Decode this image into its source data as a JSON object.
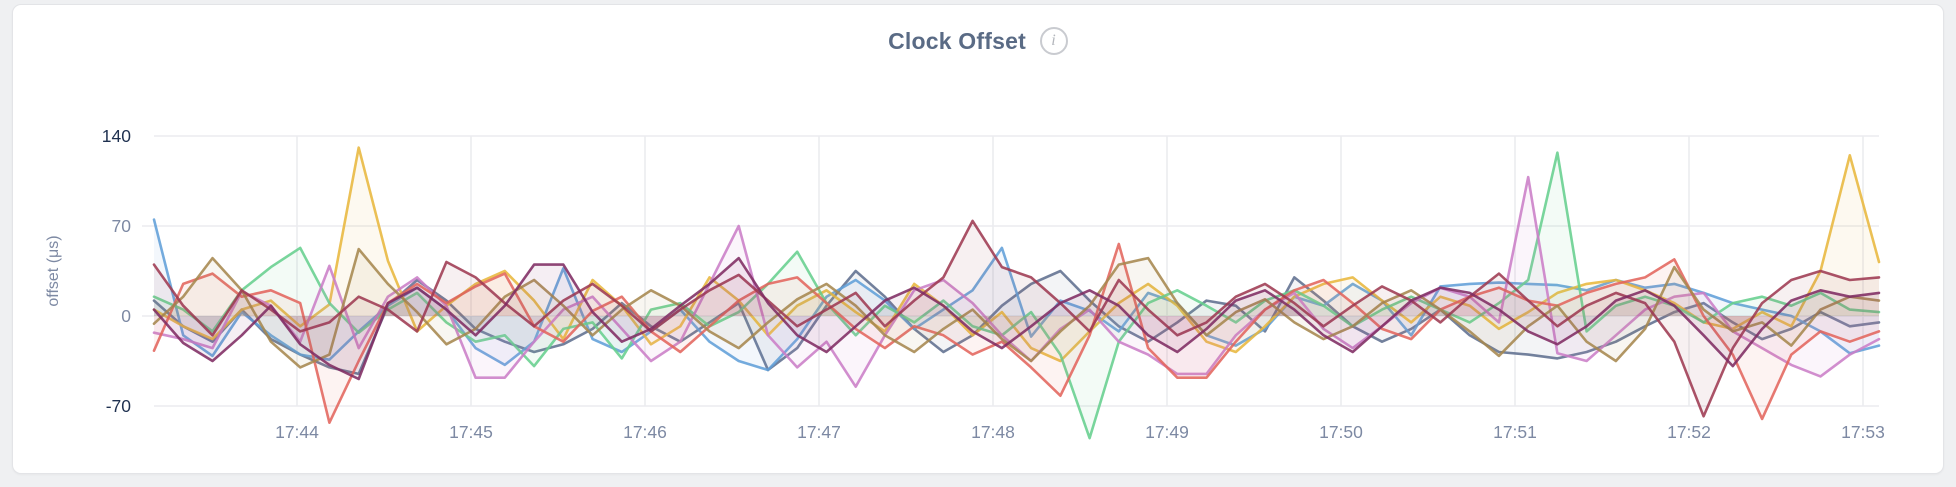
{
  "card": {
    "title": "Clock Offset",
    "info_icon_glyph": "i"
  },
  "colors": {
    "page_background": "#eff0f2",
    "card_background": "#ffffff",
    "card_border": "#e3e4e7",
    "title_text": "#5a6b85",
    "gridline": "#ebecef",
    "axis_label_muted": "#7d89a3",
    "axis_label_strong": "#1f3150"
  },
  "chart_data": {
    "type": "line",
    "title": "Clock Offset",
    "xlabel": "",
    "ylabel": "offset (μs)",
    "unit": "μs",
    "x_ticks": [
      "17:44",
      "17:45",
      "17:46",
      "17:47",
      "17:48",
      "17:49",
      "17:50",
      "17:51",
      "17:52",
      "17:53"
    ],
    "y_ticks": [
      140,
      70,
      0,
      -70
    ],
    "ylim": [
      -70,
      140
    ],
    "grid": true,
    "legend": "none",
    "series": [
      {
        "name": "slate",
        "color": "#60708f",
        "values": [
          12,
          -8,
          -20,
          5,
          -18,
          -30,
          -40,
          -45,
          8,
          28,
          12,
          -10,
          -20,
          -28,
          -22,
          -10,
          10,
          -8,
          -20,
          -5,
          10,
          -42,
          -25,
          8,
          35,
          15,
          -10,
          -28,
          -15,
          8,
          25,
          35,
          12,
          -8,
          -20,
          -5,
          12,
          8,
          -12,
          30,
          12,
          -8,
          -20,
          -10,
          5,
          -15,
          -28,
          -30,
          -33,
          -28,
          -20,
          -8,
          3,
          10,
          -5,
          -18,
          -10,
          3,
          -8,
          -5
        ]
      },
      {
        "name": "blue",
        "color": "#619fd8",
        "values": [
          75,
          -15,
          -31,
          3,
          -15,
          -30,
          -34,
          -12,
          8,
          22,
          5,
          -25,
          -38,
          -20,
          37,
          -18,
          -28,
          -12,
          5,
          -20,
          -35,
          -42,
          -18,
          15,
          28,
          12,
          -10,
          5,
          20,
          53,
          -16,
          12,
          4,
          -12,
          18,
          10,
          -15,
          -23,
          -10,
          15,
          8,
          25,
          12,
          -15,
          23,
          25,
          26,
          25,
          24,
          20,
          28,
          22,
          25,
          18,
          10,
          5,
          0,
          -12,
          -29,
          -23
        ]
      },
      {
        "name": "gold",
        "color": "#e8b73d",
        "values": [
          5,
          -8,
          -18,
          5,
          12,
          -8,
          9,
          131,
          43,
          -12,
          8,
          25,
          35,
          12,
          -18,
          28,
          8,
          -22,
          -8,
          30,
          12,
          -15,
          8,
          20,
          3,
          -12,
          25,
          8,
          -15,
          3,
          -25,
          -35,
          -12,
          10,
          25,
          8,
          -20,
          -28,
          -8,
          15,
          25,
          30,
          12,
          -5,
          15,
          8,
          -10,
          3,
          18,
          25,
          28,
          20,
          10,
          -5,
          -10,
          3,
          -8,
          35,
          125,
          42
        ]
      },
      {
        "name": "green",
        "color": "#67cf8e",
        "values": [
          15,
          5,
          -12,
          20,
          38,
          53,
          10,
          -13,
          5,
          18,
          -5,
          -20,
          -15,
          -39,
          -10,
          -5,
          -33,
          5,
          10,
          -8,
          3,
          25,
          50,
          10,
          -15,
          8,
          -5,
          12,
          -8,
          -15,
          3,
          -30,
          -95,
          -20,
          10,
          20,
          8,
          -5,
          12,
          20,
          8,
          -8,
          5,
          15,
          5,
          -5,
          10,
          28,
          127,
          -12,
          8,
          15,
          8,
          -5,
          10,
          15,
          8,
          18,
          5,
          3
        ]
      },
      {
        "name": "orchid",
        "color": "#cb7ec7",
        "values": [
          -13,
          -18,
          -25,
          19,
          8,
          -20,
          39,
          -25,
          15,
          30,
          8,
          -48,
          -48,
          -20,
          5,
          15,
          -10,
          -35,
          -20,
          25,
          70,
          -15,
          -40,
          -20,
          -55,
          -15,
          20,
          28,
          10,
          -15,
          -35,
          -10,
          5,
          -20,
          -30,
          -45,
          -45,
          -15,
          5,
          18,
          -10,
          -25,
          -8,
          10,
          22,
          15,
          -5,
          108,
          -29,
          -35,
          -15,
          5,
          15,
          18,
          -12,
          -25,
          -38,
          -47,
          -30,
          -18
        ]
      },
      {
        "name": "salmon",
        "color": "#e3655d",
        "values": [
          -27,
          25,
          33,
          15,
          20,
          10,
          -83,
          -35,
          10,
          25,
          10,
          23,
          33,
          -8,
          -20,
          4,
          15,
          -12,
          -28,
          -8,
          12,
          25,
          30,
          10,
          -10,
          -25,
          -8,
          -15,
          -30,
          -20,
          -40,
          -62,
          -15,
          56,
          -25,
          -48,
          -48,
          -20,
          5,
          20,
          28,
          10,
          -10,
          -18,
          5,
          15,
          22,
          12,
          8,
          18,
          25,
          30,
          44,
          0,
          -30,
          -80,
          -30,
          -12,
          -20,
          -12
        ]
      },
      {
        "name": "olive",
        "color": "#a6874f",
        "values": [
          -6,
          15,
          45,
          20,
          -20,
          -40,
          -30,
          52,
          25,
          3,
          -22,
          -10,
          15,
          28,
          8,
          -15,
          5,
          20,
          8,
          -12,
          -25,
          -5,
          13,
          25,
          8,
          -15,
          -28,
          -10,
          5,
          -18,
          -35,
          -12,
          8,
          40,
          45,
          10,
          -15,
          3,
          13,
          -5,
          -18,
          -8,
          10,
          20,
          5,
          -12,
          -31,
          -8,
          8,
          -20,
          -35,
          -10,
          38,
          5,
          -12,
          -5,
          -23,
          5,
          15,
          12
        ]
      },
      {
        "name": "maroon",
        "color": "#9e3a52",
        "values": [
          40,
          8,
          -15,
          20,
          5,
          -12,
          -5,
          15,
          5,
          -12,
          42,
          30,
          10,
          -8,
          12,
          25,
          8,
          -12,
          5,
          20,
          32,
          12,
          -8,
          5,
          18,
          -8,
          12,
          30,
          74,
          38,
          30,
          10,
          -12,
          28,
          5,
          -15,
          -5,
          15,
          25,
          10,
          -8,
          8,
          23,
          12,
          -5,
          15,
          33,
          12,
          -8,
          8,
          18,
          10,
          -20,
          -78,
          -25,
          10,
          28,
          35,
          28,
          30
        ]
      },
      {
        "name": "plum",
        "color": "#7f2c63",
        "values": [
          5,
          -21,
          -35,
          -15,
          8,
          -22,
          -38,
          -49,
          10,
          22,
          5,
          -15,
          8,
          40,
          40,
          3,
          -20,
          -10,
          8,
          25,
          45,
          10,
          -15,
          -28,
          -8,
          12,
          22,
          8,
          -12,
          -25,
          -8,
          10,
          20,
          8,
          -15,
          -28,
          -10,
          12,
          20,
          5,
          -15,
          -28,
          -8,
          12,
          22,
          18,
          5,
          -12,
          -22,
          -8,
          12,
          20,
          8,
          -15,
          -39,
          -10,
          12,
          20,
          15,
          18
        ]
      }
    ]
  }
}
